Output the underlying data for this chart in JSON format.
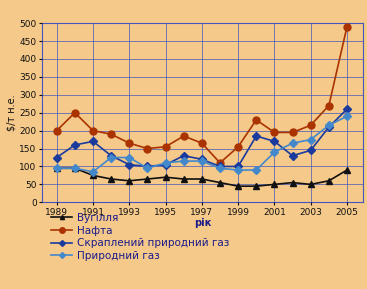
{
  "years": [
    1989,
    1990,
    1991,
    1992,
    1993,
    1994,
    1995,
    1996,
    1997,
    1998,
    1999,
    2000,
    2001,
    2002,
    2003,
    2004,
    2005
  ],
  "coal": [
    95,
    95,
    75,
    65,
    60,
    65,
    70,
    65,
    65,
    55,
    45,
    45,
    50,
    55,
    50,
    60,
    90
  ],
  "oil": [
    200,
    250,
    200,
    190,
    165,
    150,
    155,
    185,
    165,
    110,
    155,
    230,
    195,
    195,
    215,
    270,
    490
  ],
  "lng": [
    125,
    160,
    170,
    130,
    105,
    100,
    105,
    130,
    120,
    100,
    100,
    185,
    170,
    130,
    145,
    210,
    260
  ],
  "gas": [
    95,
    95,
    85,
    125,
    125,
    95,
    110,
    115,
    115,
    95,
    90,
    90,
    140,
    165,
    175,
    215,
    240
  ],
  "series_labels": [
    "Вугілля",
    "Нафта",
    "Скраплений природний газ",
    "Природний газ"
  ],
  "colors": [
    "#111111",
    "#aa3300",
    "#1a3a9e",
    "#4488cc"
  ],
  "markers": [
    "^",
    "o",
    "D",
    "D"
  ],
  "marker_sizes": [
    4,
    5,
    4,
    4
  ],
  "ylabel": "$/т н.е.",
  "xlabel": "рік",
  "ylim": [
    0,
    500
  ],
  "yticks": [
    0,
    50,
    100,
    150,
    200,
    250,
    300,
    350,
    400,
    450,
    500
  ],
  "xticks": [
    1989,
    1991,
    1993,
    1995,
    1997,
    1999,
    2001,
    2003,
    2005
  ],
  "background_color": "#f5c98a",
  "grid_color": "#4455bb",
  "line_width": 1.2,
  "legend_fontsize": 7.5,
  "tick_fontsize": 6.5,
  "ylabel_fontsize": 7,
  "xlabel_fontsize": 7
}
